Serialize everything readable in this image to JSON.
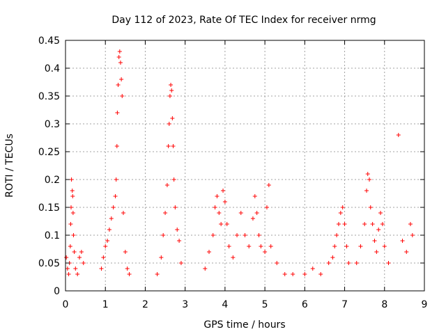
{
  "chart_data": {
    "type": "scatter",
    "title": "Day 112 of 2023, Rate Of TEC Index for receiver nrmg",
    "xlabel": "GPS time / hours",
    "ylabel": "ROTI / TECUs",
    "xlim": [
      0,
      9
    ],
    "ylim": [
      0,
      0.45
    ],
    "xticks": [
      "0",
      "1",
      "2",
      "3",
      "4",
      "5",
      "6",
      "7",
      "8",
      "9"
    ],
    "yticks": [
      "0",
      "0.05",
      "0.1",
      "0.15",
      "0.2",
      "0.25",
      "0.3",
      "0.35",
      "0.4",
      "0.45"
    ],
    "grid": true,
    "marker": "+",
    "color": "#ff0000",
    "series": [
      {
        "name": "ROTI",
        "points": [
          [
            0.02,
            0.06
          ],
          [
            0.05,
            0.04
          ],
          [
            0.08,
            0.03
          ],
          [
            0.1,
            0.05
          ],
          [
            0.12,
            0.08
          ],
          [
            0.13,
            0.12
          ],
          [
            0.14,
            0.15
          ],
          [
            0.15,
            0.2
          ],
          [
            0.17,
            0.18
          ],
          [
            0.18,
            0.17
          ],
          [
            0.19,
            0.14
          ],
          [
            0.2,
            0.1
          ],
          [
            0.22,
            0.07
          ],
          [
            0.25,
            0.04
          ],
          [
            0.3,
            0.03
          ],
          [
            0.35,
            0.06
          ],
          [
            0.4,
            0.07
          ],
          [
            0.45,
            0.05
          ],
          [
            0.9,
            0.04
          ],
          [
            0.95,
            0.06
          ],
          [
            1.0,
            0.08
          ],
          [
            1.05,
            0.09
          ],
          [
            1.1,
            0.11
          ],
          [
            1.15,
            0.13
          ],
          [
            1.2,
            0.15
          ],
          [
            1.25,
            0.17
          ],
          [
            1.27,
            0.2
          ],
          [
            1.29,
            0.26
          ],
          [
            1.3,
            0.32
          ],
          [
            1.32,
            0.37
          ],
          [
            1.34,
            0.42
          ],
          [
            1.36,
            0.43
          ],
          [
            1.38,
            0.41
          ],
          [
            1.4,
            0.38
          ],
          [
            1.42,
            0.35
          ],
          [
            1.45,
            0.14
          ],
          [
            1.5,
            0.07
          ],
          [
            1.55,
            0.04
          ],
          [
            1.6,
            0.03
          ],
          [
            2.3,
            0.03
          ],
          [
            2.4,
            0.06
          ],
          [
            2.45,
            0.1
          ],
          [
            2.5,
            0.14
          ],
          [
            2.55,
            0.19
          ],
          [
            2.58,
            0.26
          ],
          [
            2.6,
            0.3
          ],
          [
            2.62,
            0.35
          ],
          [
            2.64,
            0.37
          ],
          [
            2.66,
            0.36
          ],
          [
            2.68,
            0.31
          ],
          [
            2.7,
            0.26
          ],
          [
            2.72,
            0.2
          ],
          [
            2.75,
            0.15
          ],
          [
            2.8,
            0.11
          ],
          [
            2.85,
            0.09
          ],
          [
            2.9,
            0.05
          ],
          [
            3.5,
            0.04
          ],
          [
            3.6,
            0.07
          ],
          [
            3.7,
            0.1
          ],
          [
            3.75,
            0.15
          ],
          [
            3.8,
            0.17
          ],
          [
            3.85,
            0.14
          ],
          [
            3.9,
            0.12
          ],
          [
            3.95,
            0.18
          ],
          [
            4.0,
            0.16
          ],
          [
            4.05,
            0.12
          ],
          [
            4.1,
            0.08
          ],
          [
            4.2,
            0.06
          ],
          [
            4.3,
            0.1
          ],
          [
            4.4,
            0.14
          ],
          [
            4.5,
            0.1
          ],
          [
            4.6,
            0.08
          ],
          [
            4.7,
            0.13
          ],
          [
            4.75,
            0.17
          ],
          [
            4.8,
            0.14
          ],
          [
            4.85,
            0.1
          ],
          [
            4.9,
            0.08
          ],
          [
            5.0,
            0.07
          ],
          [
            5.05,
            0.15
          ],
          [
            5.1,
            0.19
          ],
          [
            5.15,
            0.08
          ],
          [
            5.3,
            0.05
          ],
          [
            5.5,
            0.03
          ],
          [
            5.7,
            0.03
          ],
          [
            6.0,
            0.03
          ],
          [
            6.2,
            0.04
          ],
          [
            6.4,
            0.03
          ],
          [
            6.6,
            0.05
          ],
          [
            6.7,
            0.06
          ],
          [
            6.75,
            0.08
          ],
          [
            6.8,
            0.1
          ],
          [
            6.85,
            0.12
          ],
          [
            6.9,
            0.14
          ],
          [
            6.95,
            0.15
          ],
          [
            7.0,
            0.12
          ],
          [
            7.05,
            0.08
          ],
          [
            7.1,
            0.05
          ],
          [
            7.3,
            0.05
          ],
          [
            7.4,
            0.08
          ],
          [
            7.5,
            0.12
          ],
          [
            7.55,
            0.18
          ],
          [
            7.58,
            0.21
          ],
          [
            7.62,
            0.2
          ],
          [
            7.65,
            0.15
          ],
          [
            7.7,
            0.12
          ],
          [
            7.75,
            0.09
          ],
          [
            7.8,
            0.07
          ],
          [
            7.85,
            0.11
          ],
          [
            7.9,
            0.14
          ],
          [
            7.95,
            0.12
          ],
          [
            8.0,
            0.08
          ],
          [
            8.1,
            0.05
          ],
          [
            8.35,
            0.28
          ],
          [
            8.45,
            0.09
          ],
          [
            8.55,
            0.07
          ],
          [
            8.65,
            0.12
          ],
          [
            8.7,
            0.1
          ]
        ]
      }
    ]
  }
}
